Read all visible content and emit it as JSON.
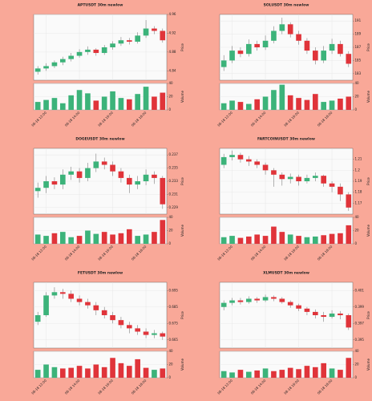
{
  "chart_data": [
    {
      "type": "candlestick",
      "title": "APTUSDT 30m newlow",
      "ylabel": "Price",
      "volume_label": "Volume",
      "categories": [
        null,
        "08-18 12:00",
        null,
        null,
        null,
        "08-18 14:00",
        null,
        null,
        null,
        "08-18 16:00",
        null,
        null,
        null,
        "08-18 18:00",
        null,
        null
      ],
      "open": [
        4.838,
        4.845,
        4.85,
        4.858,
        4.865,
        4.872,
        4.88,
        4.885,
        4.878,
        4.89,
        4.898,
        4.905,
        4.902,
        4.915,
        4.93,
        4.925
      ],
      "high": [
        4.85,
        4.856,
        4.862,
        4.87,
        4.878,
        4.886,
        4.892,
        4.888,
        4.895,
        4.903,
        4.912,
        4.91,
        4.922,
        4.948,
        4.935,
        4.93
      ],
      "low": [
        4.832,
        4.84,
        4.846,
        4.852,
        4.86,
        4.868,
        4.874,
        4.872,
        4.874,
        4.885,
        4.893,
        4.896,
        4.898,
        4.91,
        4.918,
        4.9
      ],
      "close": [
        4.845,
        4.85,
        4.858,
        4.865,
        4.872,
        4.88,
        4.885,
        4.878,
        4.89,
        4.898,
        4.905,
        4.902,
        4.915,
        4.93,
        4.925,
        4.905
      ],
      "volume": [
        12,
        15,
        18,
        10,
        22,
        30,
        25,
        14,
        20,
        28,
        18,
        16,
        24,
        35,
        20,
        26
      ],
      "ylim": [
        4.82,
        4.96
      ],
      "yticks": [
        4.84,
        4.88,
        4.92,
        4.96
      ],
      "volume_lim": [
        0,
        40
      ],
      "volume_ticks": [
        0,
        20,
        40
      ],
      "up_color": "#3cb37a",
      "down_color": "#e0343a",
      "grid": true
    },
    {
      "type": "candlestick",
      "title": "SOLUSDT 30m newlow",
      "ylabel": "Price",
      "volume_label": "Volume",
      "categories": [
        null,
        "08-18 12:00",
        null,
        null,
        null,
        "08-18 14:00",
        null,
        null,
        null,
        "08-18 16:00",
        null,
        null,
        null,
        "08-18 18:00",
        null,
        null
      ],
      "open": [
        184.0,
        185.0,
        186.5,
        186.0,
        187.5,
        187.0,
        188.0,
        189.5,
        190.5,
        189.0,
        188.0,
        186.5,
        185.0,
        186.5,
        187.5,
        186.0
      ],
      "high": [
        185.8,
        187.2,
        187.0,
        188.2,
        188.0,
        188.8,
        190.2,
        191.5,
        190.8,
        189.5,
        188.4,
        187.0,
        187.2,
        188.3,
        188.0,
        186.4
      ],
      "low": [
        183.4,
        184.6,
        185.5,
        185.6,
        186.5,
        186.6,
        187.6,
        189.0,
        188.5,
        187.4,
        186.0,
        184.4,
        184.6,
        186.0,
        185.6,
        184.0
      ],
      "close": [
        185.0,
        186.5,
        186.0,
        187.5,
        187.0,
        188.0,
        189.5,
        190.5,
        189.0,
        188.0,
        186.5,
        185.0,
        186.5,
        187.5,
        186.0,
        184.5
      ],
      "volume": [
        10,
        14,
        12,
        9,
        16,
        20,
        30,
        38,
        22,
        18,
        15,
        24,
        12,
        14,
        17,
        20
      ],
      "ylim": [
        182,
        192
      ],
      "yticks": [
        183,
        185,
        187,
        189,
        191
      ],
      "volume_lim": [
        0,
        40
      ],
      "volume_ticks": [
        0,
        20,
        40
      ],
      "up_color": "#3cb37a",
      "down_color": "#e0343a",
      "grid": true
    },
    {
      "type": "candlestick",
      "title": "DOGEUSDT 30m newlow",
      "ylabel": "Price",
      "volume_label": "Volume",
      "categories": [
        null,
        "08-18 12:00",
        null,
        null,
        null,
        "08-18 14:00",
        null,
        null,
        null,
        "08-18 16:00",
        null,
        null,
        null,
        "08-18 18:00",
        null,
        null
      ],
      "open": [
        0.2315,
        0.232,
        0.233,
        0.2325,
        0.234,
        0.2345,
        0.2335,
        0.235,
        0.236,
        0.2355,
        0.2345,
        0.2335,
        0.2325,
        0.233,
        0.234,
        0.2335
      ],
      "high": [
        0.2328,
        0.2338,
        0.2336,
        0.2348,
        0.2352,
        0.235,
        0.2358,
        0.2372,
        0.2366,
        0.236,
        0.235,
        0.234,
        0.2338,
        0.2348,
        0.2345,
        0.2338
      ],
      "low": [
        0.2305,
        0.2312,
        0.2318,
        0.2318,
        0.2332,
        0.2328,
        0.233,
        0.2344,
        0.2348,
        0.2338,
        0.2328,
        0.2312,
        0.2318,
        0.2324,
        0.2326,
        0.2288
      ],
      "close": [
        0.232,
        0.233,
        0.2325,
        0.234,
        0.2345,
        0.2335,
        0.235,
        0.236,
        0.2355,
        0.2345,
        0.2335,
        0.2325,
        0.233,
        0.234,
        0.2335,
        0.2295
      ],
      "volume": [
        14,
        12,
        16,
        18,
        10,
        12,
        20,
        15,
        18,
        14,
        16,
        22,
        12,
        14,
        18,
        36
      ],
      "ylim": [
        0.228,
        0.238
      ],
      "yticks": [
        0.229,
        0.231,
        0.233,
        0.235,
        0.237
      ],
      "volume_lim": [
        0,
        40
      ],
      "volume_ticks": [
        0,
        20,
        40
      ],
      "up_color": "#3cb37a",
      "down_color": "#e0343a",
      "grid": true
    },
    {
      "type": "candlestick",
      "title": "FARTCOINUSDT 30m newlow",
      "ylabel": "Price",
      "volume_label": "Volume",
      "categories": [
        null,
        "08-18 12:00",
        null,
        null,
        null,
        "08-18 14:00",
        null,
        null,
        null,
        "08-18 16:00",
        null,
        null,
        null,
        "08-18 18:00",
        null,
        null
      ],
      "open": [
        1.205,
        1.212,
        1.214,
        1.21,
        1.208,
        1.205,
        1.2,
        1.196,
        1.192,
        1.194,
        1.19,
        1.193,
        1.195,
        1.188,
        1.185,
        1.178
      ],
      "high": [
        1.215,
        1.218,
        1.216,
        1.213,
        1.21,
        1.207,
        1.202,
        1.198,
        1.197,
        1.196,
        1.196,
        1.198,
        1.196,
        1.19,
        1.188,
        1.18
      ],
      "low": [
        1.202,
        1.209,
        1.207,
        1.204,
        1.202,
        1.196,
        1.185,
        1.186,
        1.188,
        1.186,
        1.188,
        1.19,
        1.185,
        1.18,
        1.172,
        1.163
      ],
      "close": [
        1.212,
        1.214,
        1.21,
        1.208,
        1.205,
        1.2,
        1.196,
        1.192,
        1.194,
        1.19,
        1.193,
        1.195,
        1.188,
        1.185,
        1.178,
        1.166
      ],
      "volume": [
        10,
        12,
        9,
        11,
        14,
        12,
        26,
        18,
        14,
        12,
        10,
        11,
        13,
        15,
        16,
        28
      ],
      "ylim": [
        1.16,
        1.22
      ],
      "yticks": [
        1.17,
        1.18,
        1.19,
        1.2,
        1.21
      ],
      "volume_lim": [
        0,
        40
      ],
      "volume_ticks": [
        0,
        20,
        40
      ],
      "up_color": "#3cb37a",
      "down_color": "#e0343a",
      "grid": true
    },
    {
      "type": "candlestick",
      "title": "FETUSDT 30m newlow",
      "ylabel": "Price",
      "volume_label": "Volume",
      "categories": [
        null,
        "08-18 12:00",
        null,
        null,
        null,
        "08-18 14:00",
        null,
        null,
        null,
        "08-18 16:00",
        null,
        null,
        null,
        "08-18 18:00",
        null,
        null
      ],
      "open": [
        0.676,
        0.68,
        0.692,
        0.694,
        0.693,
        0.69,
        0.688,
        0.686,
        0.683,
        0.68,
        0.677,
        0.674,
        0.672,
        0.67,
        0.668,
        0.669
      ],
      "high": [
        0.682,
        0.694,
        0.697,
        0.696,
        0.695,
        0.692,
        0.69,
        0.688,
        0.685,
        0.682,
        0.679,
        0.676,
        0.674,
        0.672,
        0.671,
        0.67
      ],
      "low": [
        0.674,
        0.679,
        0.69,
        0.69,
        0.688,
        0.686,
        0.684,
        0.68,
        0.678,
        0.675,
        0.672,
        0.669,
        0.668,
        0.666,
        0.666,
        0.665
      ],
      "close": [
        0.68,
        0.692,
        0.694,
        0.693,
        0.69,
        0.688,
        0.686,
        0.683,
        0.68,
        0.677,
        0.674,
        0.672,
        0.67,
        0.668,
        0.669,
        0.667
      ],
      "volume": [
        12,
        20,
        16,
        14,
        15,
        18,
        14,
        20,
        16,
        30,
        22,
        18,
        28,
        15,
        12,
        14
      ],
      "ylim": [
        0.66,
        0.7
      ],
      "yticks": [
        0.665,
        0.675,
        0.685,
        0.695
      ],
      "volume_lim": [
        0,
        40
      ],
      "volume_ticks": [
        0,
        20,
        40
      ],
      "up_color": "#3cb37a",
      "down_color": "#e0343a",
      "grid": true
    },
    {
      "type": "candlestick",
      "title": "XLMUSDT 30m newlow",
      "ylabel": "Price",
      "volume_label": "Volume",
      "categories": [
        null,
        "08-18 12:00",
        null,
        null,
        null,
        "08-18 14:00",
        null,
        null,
        null,
        "08-18 16:00",
        null,
        null,
        null,
        "08-18 18:00",
        null,
        null
      ],
      "open": [
        0.399,
        0.3995,
        0.3998,
        0.3996,
        0.4,
        0.3998,
        0.4002,
        0.4,
        0.3996,
        0.3992,
        0.3988,
        0.3984,
        0.398,
        0.3978,
        0.3982,
        0.398
      ],
      "high": [
        0.3998,
        0.4001,
        0.4001,
        0.4003,
        0.4002,
        0.4005,
        0.4004,
        0.4002,
        0.3998,
        0.3994,
        0.399,
        0.3987,
        0.3984,
        0.3986,
        0.3985,
        0.3982
      ],
      "low": [
        0.3986,
        0.3992,
        0.3993,
        0.3994,
        0.3995,
        0.3996,
        0.3997,
        0.3994,
        0.3989,
        0.3985,
        0.398,
        0.3976,
        0.3972,
        0.3976,
        0.3975,
        0.3962
      ],
      "close": [
        0.3995,
        0.3998,
        0.3996,
        0.4,
        0.3998,
        0.4002,
        0.4,
        0.3996,
        0.3992,
        0.3988,
        0.3984,
        0.398,
        0.3978,
        0.3982,
        0.398,
        0.3965
      ],
      "volume": [
        10,
        8,
        12,
        9,
        11,
        14,
        10,
        12,
        15,
        13,
        18,
        16,
        22,
        14,
        12,
        30
      ],
      "ylim": [
        0.394,
        0.402
      ],
      "yticks": [
        0.395,
        0.397,
        0.399,
        0.401
      ],
      "volume_lim": [
        0,
        40
      ],
      "volume_ticks": [
        0,
        20,
        40
      ],
      "up_color": "#3cb37a",
      "down_color": "#e0343a",
      "grid": true
    }
  ]
}
